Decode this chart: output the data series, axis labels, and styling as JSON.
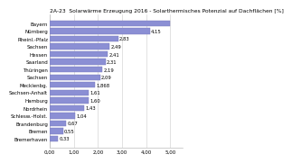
{
  "title": "2A-23  Solarwärme Erzeugung 2016 - Solarthermisches Potenzial auf Dachflächen [%]",
  "categories": [
    "Bremerhaven",
    "Bremen",
    "Brandenburg",
    "Schlesw.-Holst.",
    "Nordrhein",
    "Hamburg",
    "Sachsen-Anhalt",
    "Mecklenbg.",
    "Sachsen",
    "Thüringen",
    "Saarland",
    "Hessen",
    "Sachsen",
    "Rheinl.-Pfalz",
    "Nürnberg",
    "Bayern"
  ],
  "values": [
    0.33,
    0.55,
    0.67,
    1.04,
    1.43,
    1.6,
    1.61,
    1.868,
    2.09,
    2.19,
    2.31,
    2.41,
    2.49,
    2.83,
    4.15,
    5.0
  ],
  "value_labels": [
    "0,33",
    "0,55",
    "0,67",
    "1,04",
    "1,43",
    "1,60",
    "1,61",
    "1,868",
    "2,09",
    "2,19",
    "2,31",
    "2,41",
    "2,49",
    "2,83",
    "4,15",
    ""
  ],
  "bar_color": "#8b8fd4",
  "bar_edge_color": "#7777bb",
  "bg_color": "#ffffff",
  "grid_color": "#cccccc",
  "title_fontsize": 4.3,
  "label_fontsize": 4.0,
  "value_fontsize": 3.8,
  "xlim_max": 5.5,
  "xticks": [
    0.0,
    1.0,
    2.0,
    3.0,
    4.0,
    5.0
  ],
  "xtick_labels": [
    "0,00",
    "1,00",
    "2,00",
    "3,00",
    "4,00",
    "5,00"
  ]
}
